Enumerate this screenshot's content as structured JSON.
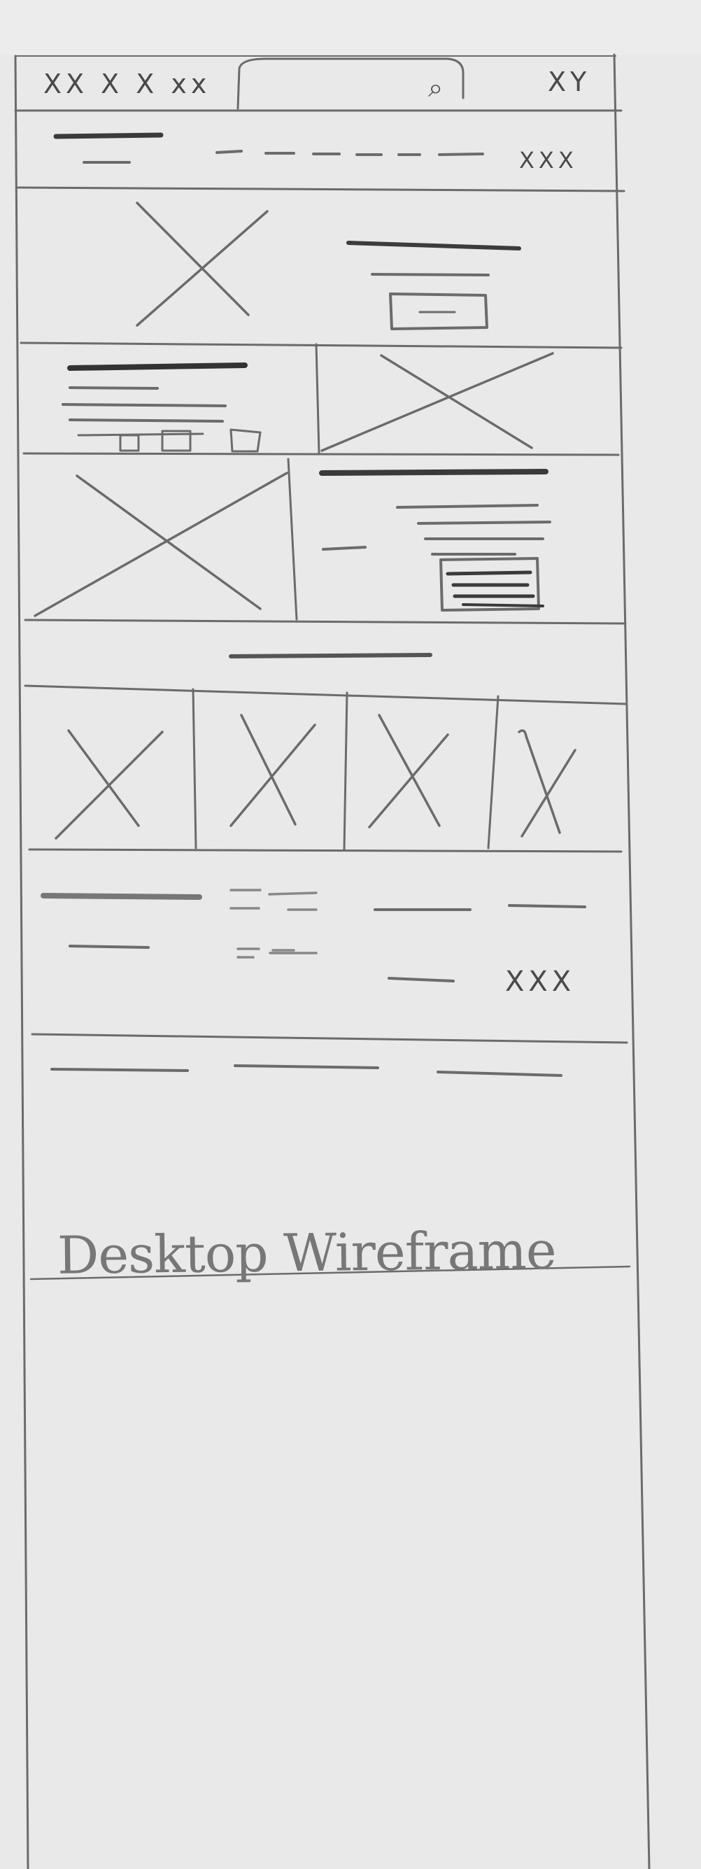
{
  "topbar": {
    "left_marks": "XX X X xx",
    "search_icon": "search-icon",
    "right_marks": "XY"
  },
  "header": {
    "right_marks": "XXX"
  },
  "footer_info": {
    "right_marks": "XXX"
  },
  "caption": "Desktop Wireframe"
}
